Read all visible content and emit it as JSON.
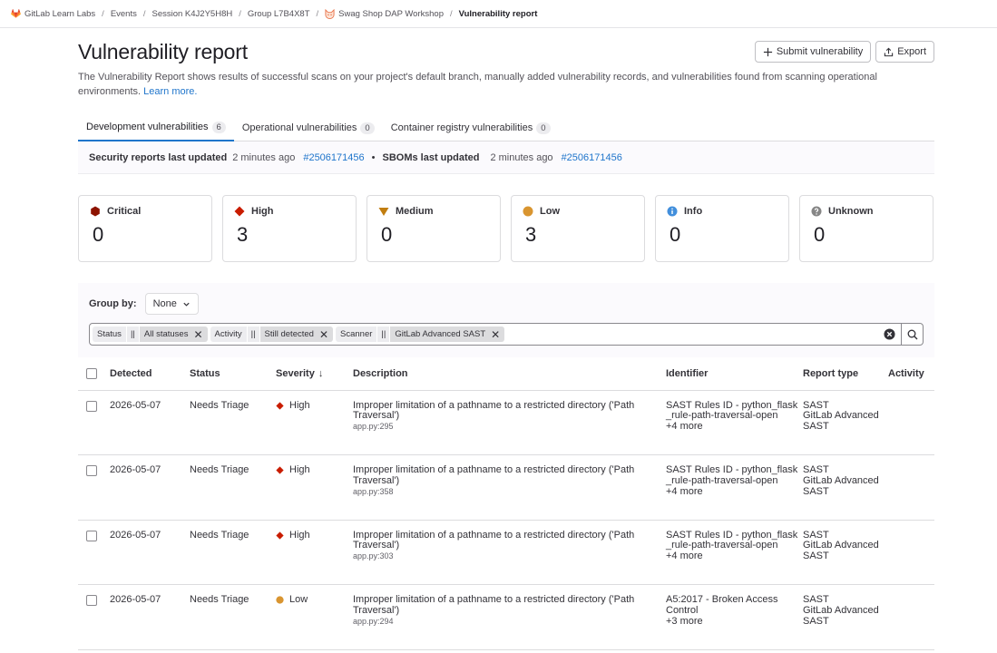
{
  "breadcrumb": [
    {
      "label": "GitLab Learn Labs",
      "icon": "gitlab-tanuki-icon"
    },
    {
      "label": "Events"
    },
    {
      "label": "Session K4J2Y5H8H"
    },
    {
      "label": "Group L7B4X8T"
    },
    {
      "label": "Swag Shop DAP Workshop",
      "icon": "fox-avatar-icon"
    },
    {
      "label": "Vulnerability report"
    }
  ],
  "page": {
    "title": "Vulnerability report",
    "description": "The Vulnerability Report shows results of successful scans on your project's default branch, manually added vulnerability records, and vulnerabilities found from scanning operational environments.",
    "learn_more": "Learn more."
  },
  "actions": {
    "submit": "Submit vulnerability",
    "export": "Export"
  },
  "tabs": [
    {
      "label": "Development vulnerabilities",
      "count": "6",
      "active": true
    },
    {
      "label": "Operational vulnerabilities",
      "count": "0"
    },
    {
      "label": "Container registry vulnerabilities",
      "count": "0"
    }
  ],
  "updated": {
    "security_label": "Security reports last updated",
    "security_time": "2 minutes ago",
    "security_link": "#2506171456",
    "dot": "•",
    "sbom_label": "SBOMs last updated",
    "sbom_time": "2 minutes ago",
    "sbom_link": "#2506171456"
  },
  "severity_counts": [
    {
      "label": "Critical",
      "count": "0",
      "icon": "critical-severity-icon",
      "color": "#8d1300"
    },
    {
      "label": "High",
      "count": "3",
      "icon": "high-severity-icon",
      "color": "#c91c00"
    },
    {
      "label": "Medium",
      "count": "0",
      "icon": "medium-severity-icon",
      "color": "#c17d10"
    },
    {
      "label": "Low",
      "count": "3",
      "icon": "low-severity-icon",
      "color": "#d99530"
    },
    {
      "label": "Info",
      "count": "0",
      "icon": "info-severity-icon",
      "color": "#428fdc"
    },
    {
      "label": "Unknown",
      "count": "0",
      "icon": "unknown-severity-icon",
      "color": "#868686"
    }
  ],
  "group_by": {
    "label": "Group by:",
    "value": "None"
  },
  "filters": [
    {
      "key": "Status",
      "op": "||",
      "value": "All statuses"
    },
    {
      "key": "Activity",
      "op": "||",
      "value": "Still detected"
    },
    {
      "key": "Scanner",
      "op": "||",
      "value": "GitLab Advanced SAST"
    }
  ],
  "table": {
    "headers": {
      "detected": "Detected",
      "status": "Status",
      "severity": "Severity",
      "description": "Description",
      "identifier": "Identifier",
      "report_type": "Report type",
      "activity": "Activity"
    },
    "sort_indicator": "↓",
    "rows": [
      {
        "detected": "2026-05-07",
        "status": "Needs Triage",
        "severity": "High",
        "description": "Improper limitation of a pathname to a restricted directory ('Path Traversal')",
        "location": "app.py:295",
        "identifier": "SAST Rules ID - python_flask_rule-path-traversal-open",
        "more": "+4 more",
        "report_type": "SAST",
        "scanner": "GitLab Advanced SAST"
      },
      {
        "detected": "2026-05-07",
        "status": "Needs Triage",
        "severity": "High",
        "description": "Improper limitation of a pathname to a restricted directory ('Path Traversal')",
        "location": "app.py:358",
        "identifier": "SAST Rules ID - python_flask_rule-path-traversal-open",
        "more": "+4 more",
        "report_type": "SAST",
        "scanner": "GitLab Advanced SAST"
      },
      {
        "detected": "2026-05-07",
        "status": "Needs Triage",
        "severity": "High",
        "description": "Improper limitation of a pathname to a restricted directory ('Path Traversal')",
        "location": "app.py:303",
        "identifier": "SAST Rules ID - python_flask_rule-path-traversal-open",
        "more": "+4 more",
        "report_type": "SAST",
        "scanner": "GitLab Advanced SAST"
      },
      {
        "detected": "2026-05-07",
        "status": "Needs Triage",
        "severity": "Low",
        "description": "Improper limitation of a pathname to a restricted directory ('Path Traversal')",
        "location": "app.py:294",
        "identifier": "A5:2017 - Broken Access Control",
        "more": "+3 more",
        "report_type": "SAST",
        "scanner": "GitLab Advanced SAST"
      }
    ]
  },
  "colors": {
    "link": "#1f75cb",
    "high": "#c91c00",
    "low": "#d99530"
  }
}
